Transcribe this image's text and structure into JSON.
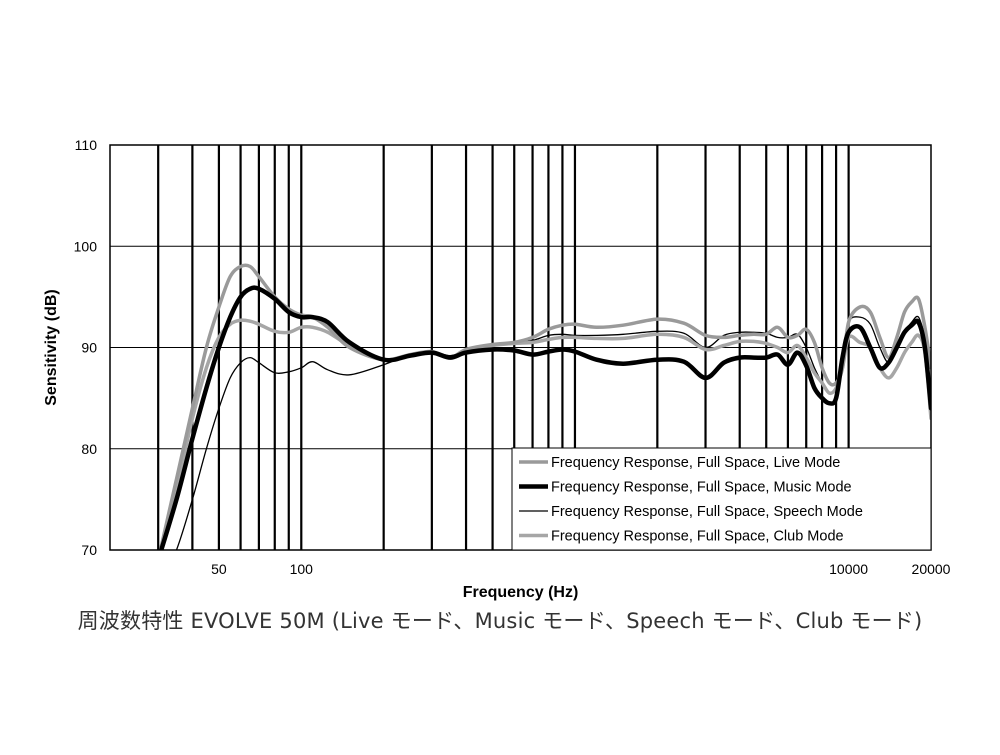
{
  "chart_data": {
    "type": "line",
    "title": "",
    "xlabel": "Frequency (Hz)",
    "ylabel": "Sensitivity (dB)",
    "x_scale": "log",
    "xlim": [
      20,
      20000
    ],
    "ylim": [
      70,
      110
    ],
    "y_ticks": [
      70,
      80,
      90,
      100,
      110
    ],
    "x_tick_labels": [
      {
        "value": 50,
        "label": "50"
      },
      {
        "value": 100,
        "label": "100"
      },
      {
        "value": 10000,
        "label": "10000"
      },
      {
        "value": 20000,
        "label": "20000"
      }
    ],
    "x_gridlines": [
      30,
      40,
      50,
      60,
      70,
      80,
      90,
      100,
      200,
      300,
      400,
      500,
      600,
      700,
      800,
      900,
      1000,
      2000,
      3000,
      4000,
      5000,
      6000,
      7000,
      8000,
      9000,
      10000
    ],
    "grid": true,
    "legend_position": "bottom-right",
    "series": [
      {
        "name": "Frequency Response, Full Space, Live Mode",
        "color": "#9a9a9a",
        "width": 3.5,
        "points": [
          [
            30,
            69
          ],
          [
            35,
            77
          ],
          [
            40,
            84
          ],
          [
            45,
            90
          ],
          [
            50,
            94
          ],
          [
            55,
            97
          ],
          [
            60,
            98
          ],
          [
            65,
            98
          ],
          [
            70,
            97
          ],
          [
            80,
            95
          ],
          [
            90,
            93.8
          ],
          [
            100,
            93.2
          ],
          [
            110,
            93
          ],
          [
            125,
            92
          ],
          [
            150,
            90
          ],
          [
            200,
            88.8
          ],
          [
            250,
            89.3
          ],
          [
            300,
            89.6
          ],
          [
            350,
            89
          ],
          [
            400,
            89.8
          ],
          [
            500,
            90.3
          ],
          [
            600,
            90.5
          ],
          [
            700,
            91
          ],
          [
            800,
            91.8
          ],
          [
            900,
            92.2
          ],
          [
            1000,
            92.3
          ],
          [
            1200,
            92
          ],
          [
            1500,
            92.2
          ],
          [
            2000,
            92.8
          ],
          [
            2500,
            92.4
          ],
          [
            3000,
            91.2
          ],
          [
            3500,
            91
          ],
          [
            4000,
            91.2
          ],
          [
            4500,
            91.3
          ],
          [
            5000,
            91.3
          ],
          [
            5500,
            92
          ],
          [
            6000,
            91
          ],
          [
            6500,
            91.2
          ],
          [
            7000,
            91.8
          ],
          [
            7500,
            90.5
          ],
          [
            8000,
            88
          ],
          [
            8500,
            86.5
          ],
          [
            9000,
            86.5
          ],
          [
            9500,
            88
          ],
          [
            10000,
            92.5
          ],
          [
            11000,
            94
          ],
          [
            12000,
            93.5
          ],
          [
            13000,
            91
          ],
          [
            14000,
            89
          ],
          [
            15000,
            91
          ],
          [
            16000,
            93.5
          ],
          [
            17000,
            94.5
          ],
          [
            18000,
            94.8
          ],
          [
            19000,
            92
          ],
          [
            20000,
            88
          ]
        ]
      },
      {
        "name": "Frequency Response, Full Space, Music Mode",
        "color": "#000000",
        "width": 4.5,
        "points": [
          [
            30,
            69
          ],
          [
            35,
            75
          ],
          [
            40,
            81
          ],
          [
            45,
            86
          ],
          [
            50,
            90
          ],
          [
            55,
            93
          ],
          [
            60,
            95
          ],
          [
            65,
            95.8
          ],
          [
            70,
            95.8
          ],
          [
            80,
            94.8
          ],
          [
            90,
            93.5
          ],
          [
            100,
            93
          ],
          [
            110,
            93
          ],
          [
            125,
            92.5
          ],
          [
            150,
            90.5
          ],
          [
            200,
            88.8
          ],
          [
            250,
            89.2
          ],
          [
            300,
            89.5
          ],
          [
            350,
            89
          ],
          [
            400,
            89.5
          ],
          [
            500,
            89.8
          ],
          [
            600,
            89.7
          ],
          [
            700,
            89.3
          ],
          [
            800,
            89.6
          ],
          [
            900,
            89.8
          ],
          [
            1000,
            89.6
          ],
          [
            1200,
            88.8
          ],
          [
            1500,
            88.4
          ],
          [
            2000,
            88.8
          ],
          [
            2500,
            88.6
          ],
          [
            3000,
            87
          ],
          [
            3500,
            88.5
          ],
          [
            4000,
            89
          ],
          [
            4500,
            89
          ],
          [
            5000,
            89
          ],
          [
            5500,
            89.3
          ],
          [
            6000,
            88.3
          ],
          [
            6500,
            89.5
          ],
          [
            7000,
            88.2
          ],
          [
            7500,
            86
          ],
          [
            8000,
            85
          ],
          [
            8500,
            84.5
          ],
          [
            9000,
            85
          ],
          [
            9500,
            89
          ],
          [
            10000,
            91.5
          ],
          [
            11000,
            92
          ],
          [
            12000,
            90
          ],
          [
            13000,
            88
          ],
          [
            14000,
            88.5
          ],
          [
            15000,
            90
          ],
          [
            16000,
            91.5
          ],
          [
            17000,
            92.2
          ],
          [
            18000,
            92.5
          ],
          [
            19000,
            90
          ],
          [
            20000,
            84
          ]
        ]
      },
      {
        "name": "Frequency Response, Full Space, Speech Mode",
        "color": "#000000",
        "width": 1.3,
        "points": [
          [
            30,
            66
          ],
          [
            35,
            70
          ],
          [
            40,
            75
          ],
          [
            45,
            80
          ],
          [
            50,
            84
          ],
          [
            55,
            87
          ],
          [
            60,
            88.5
          ],
          [
            65,
            89
          ],
          [
            70,
            88.5
          ],
          [
            80,
            87.5
          ],
          [
            90,
            87.6
          ],
          [
            100,
            88
          ],
          [
            110,
            88.6
          ],
          [
            125,
            87.8
          ],
          [
            150,
            87.3
          ],
          [
            200,
            88.3
          ],
          [
            250,
            89.3
          ],
          [
            300,
            89.6
          ],
          [
            350,
            89.2
          ],
          [
            400,
            89.7
          ],
          [
            500,
            90.2
          ],
          [
            600,
            90.5
          ],
          [
            700,
            90.7
          ],
          [
            800,
            91.2
          ],
          [
            900,
            91.3
          ],
          [
            1000,
            91.2
          ],
          [
            1200,
            91.2
          ],
          [
            1500,
            91.3
          ],
          [
            2000,
            91.6
          ],
          [
            2500,
            91.4
          ],
          [
            3000,
            90
          ],
          [
            3500,
            91.2
          ],
          [
            4000,
            91.5
          ],
          [
            4500,
            91.5
          ],
          [
            5000,
            91.4
          ],
          [
            5500,
            91
          ],
          [
            6000,
            91
          ],
          [
            6500,
            91.3
          ],
          [
            7000,
            90
          ],
          [
            7500,
            88
          ],
          [
            8000,
            86.5
          ],
          [
            8500,
            85.5
          ],
          [
            9000,
            86
          ],
          [
            9500,
            89
          ],
          [
            10000,
            92.5
          ],
          [
            11000,
            93
          ],
          [
            12000,
            92.3
          ],
          [
            13000,
            90
          ],
          [
            14000,
            88.5
          ],
          [
            15000,
            90
          ],
          [
            16000,
            91.5
          ],
          [
            17000,
            92.5
          ],
          [
            18000,
            93
          ],
          [
            19000,
            91
          ],
          [
            20000,
            88
          ]
        ]
      },
      {
        "name": "Frequency Response, Full Space, Club Mode",
        "color": "#a6a6a6",
        "width": 3.5,
        "points": [
          [
            30,
            69
          ],
          [
            35,
            76
          ],
          [
            40,
            83
          ],
          [
            45,
            88
          ],
          [
            50,
            91
          ],
          [
            55,
            92.3
          ],
          [
            60,
            92.7
          ],
          [
            65,
            92.6
          ],
          [
            70,
            92.3
          ],
          [
            80,
            91.6
          ],
          [
            90,
            91.5
          ],
          [
            100,
            92
          ],
          [
            110,
            92
          ],
          [
            125,
            91.5
          ],
          [
            150,
            90.2
          ],
          [
            200,
            88.8
          ],
          [
            250,
            89.2
          ],
          [
            300,
            89.5
          ],
          [
            350,
            89
          ],
          [
            400,
            89.5
          ],
          [
            500,
            90.2
          ],
          [
            600,
            90.4
          ],
          [
            700,
            90.5
          ],
          [
            800,
            90.8
          ],
          [
            900,
            91
          ],
          [
            1000,
            91
          ],
          [
            1200,
            90.9
          ],
          [
            1500,
            90.9
          ],
          [
            2000,
            91.3
          ],
          [
            2500,
            91
          ],
          [
            3000,
            89.8
          ],
          [
            3500,
            90.2
          ],
          [
            4000,
            90.6
          ],
          [
            4500,
            90.6
          ],
          [
            5000,
            90.4
          ],
          [
            5500,
            90
          ],
          [
            6000,
            89.5
          ],
          [
            6500,
            90.2
          ],
          [
            7000,
            89
          ],
          [
            7500,
            87.5
          ],
          [
            8000,
            86.5
          ],
          [
            8500,
            85.5
          ],
          [
            9000,
            86
          ],
          [
            9500,
            88
          ],
          [
            10000,
            91
          ],
          [
            11000,
            90.5
          ],
          [
            12000,
            90
          ],
          [
            13000,
            88
          ],
          [
            14000,
            87
          ],
          [
            15000,
            88
          ],
          [
            16000,
            89.5
          ],
          [
            17000,
            90.5
          ],
          [
            18000,
            91.2
          ],
          [
            19000,
            89.5
          ],
          [
            20000,
            83
          ]
        ]
      }
    ]
  },
  "caption": "周波数特性 EVOLVE 50M (Live モード、Music モード、Speech モード、Club モード)"
}
